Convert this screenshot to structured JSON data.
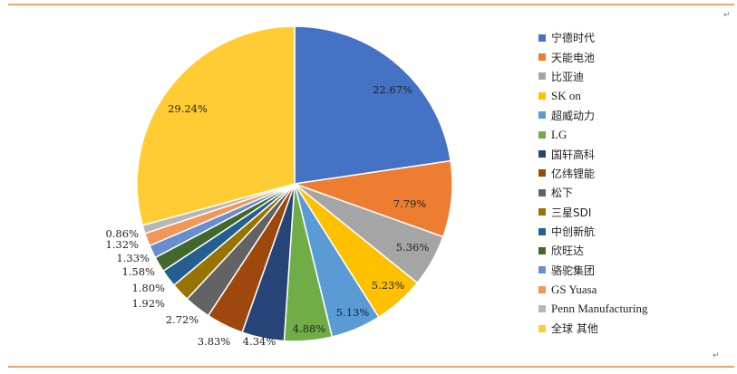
{
  "chart_data": {
    "type": "pie",
    "title": "",
    "categories": [
      "宁德时代",
      "天能电池",
      "比亚迪",
      "SK on",
      "超威动力",
      "LG",
      "国轩高科",
      "亿纬锂能",
      "松下",
      "三星SDI",
      "中创新航",
      "欣旺达",
      "骆驼集团",
      "GS Yuasa",
      "Penn Manufacturing",
      "全球其他"
    ],
    "legend_labels": [
      "宁德时代",
      "天能电池",
      "比亚迪",
      "SK on",
      "超威动力",
      "LG",
      "国轩高科",
      "亿纬锂能",
      "松下",
      "三星SDI",
      "中创新航",
      "欣旺达",
      "骆驼集团",
      "GS Yuasa",
      "Penn Manufacturing",
      "全球 其他"
    ],
    "values": [
      22.67,
      7.79,
      5.36,
      5.23,
      5.13,
      4.88,
      4.34,
      3.83,
      2.72,
      1.92,
      1.8,
      1.58,
      1.33,
      1.32,
      0.86,
      29.24
    ],
    "data_labels": [
      "22.67%",
      "7.79%",
      "5.36%",
      "5.23%",
      "5.13%",
      "4.88%",
      "4.34%",
      "3.83%",
      "2.72%",
      "1.92%",
      "1.80%",
      "1.58%",
      "1.33%",
      "1.32%",
      "0.86%",
      "29.24%"
    ],
    "colors": [
      "#4472C4",
      "#ED7D31",
      "#A5A5A5",
      "#FFC000",
      "#5B9BD5",
      "#70AD47",
      "#264478",
      "#9E480E",
      "#636363",
      "#997300",
      "#255E91",
      "#43682B",
      "#698ED0",
      "#F1975A",
      "#B7B7B7",
      "#FFCD33"
    ],
    "legend_position": "right",
    "start_angle": "top, clockwise"
  },
  "frame": {
    "border_color": "#E08A3C"
  }
}
